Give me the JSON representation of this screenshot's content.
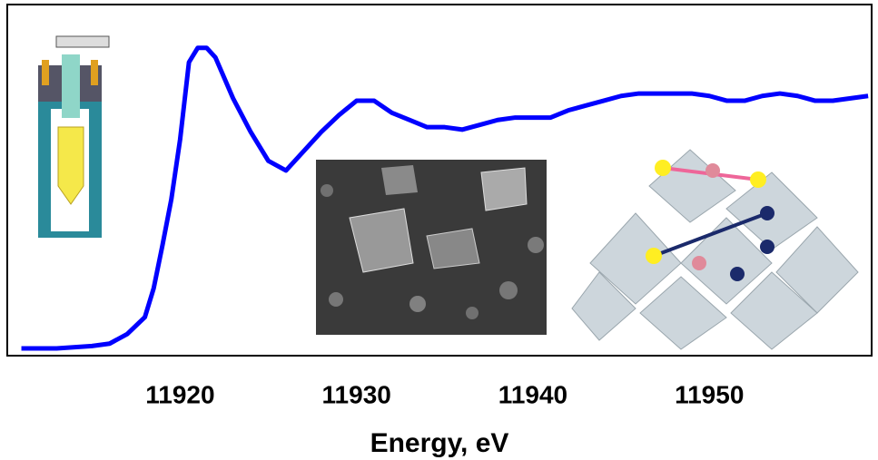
{
  "chart_data": {
    "type": "line",
    "x_label": "Energy, eV",
    "x": [
      11911,
      11913,
      11915,
      11916,
      11917,
      11918,
      11918.5,
      11919,
      11919.5,
      11920,
      11920.5,
      11921,
      11921.5,
      11922,
      11923,
      11924,
      11925,
      11926,
      11927,
      11928,
      11929,
      11930,
      11931,
      11932,
      11933,
      11934,
      11935,
      11936,
      11937,
      11938,
      11939,
      11940,
      11941,
      11942,
      11943,
      11944,
      11945,
      11946,
      11947,
      11948,
      11949,
      11950,
      11951,
      11952,
      11953,
      11954,
      11955,
      11956,
      11957,
      11958,
      11959
    ],
    "series": [
      {
        "color": "#0000ff",
        "values": [
          0,
          0,
          0.01,
          0.02,
          0.06,
          0.13,
          0.25,
          0.43,
          0.62,
          0.87,
          1.19,
          1.25,
          1.25,
          1.21,
          1.04,
          0.9,
          0.78,
          0.74,
          0.82,
          0.9,
          0.97,
          1.03,
          1.03,
          0.98,
          0.95,
          0.92,
          0.92,
          0.91,
          0.93,
          0.95,
          0.96,
          0.96,
          0.96,
          0.99,
          1.01,
          1.03,
          1.05,
          1.06,
          1.06,
          1.06,
          1.06,
          1.05,
          1.03,
          1.03,
          1.05,
          1.06,
          1.05,
          1.03,
          1.03,
          1.04,
          1.05
        ]
      }
    ],
    "xlim": [
      11910.2,
      11959.2
    ],
    "ylim": [
      -0.03,
      1.43
    ],
    "xticks": [
      11920,
      11930,
      11940,
      11950
    ]
  }
}
